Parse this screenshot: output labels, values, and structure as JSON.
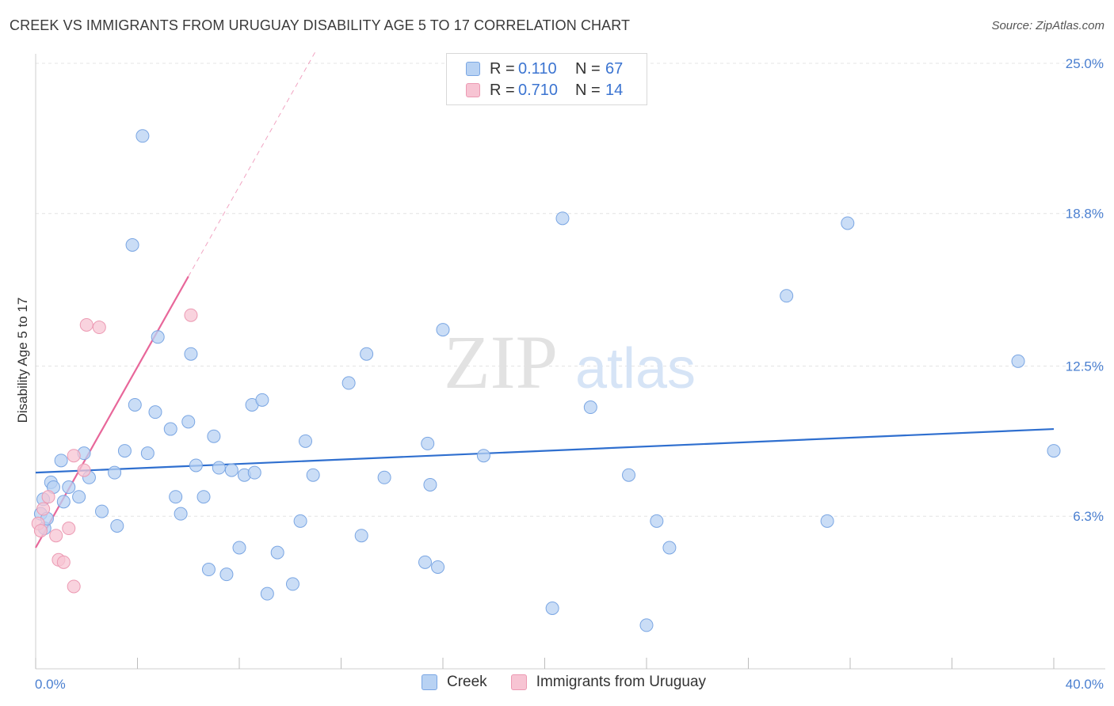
{
  "title": "CREEK VS IMMIGRANTS FROM URUGUAY DISABILITY AGE 5 TO 17 CORRELATION CHART",
  "source": "Source: ZipAtlas.com",
  "watermark": {
    "zip": "ZIP",
    "atlas": "atlas"
  },
  "legend": {
    "rows": [
      {
        "r_label": "R =",
        "r_value": "0.110",
        "n_label": "N =",
        "n_value": "67"
      },
      {
        "r_label": "R =",
        "r_value": "0.710",
        "n_label": "N =",
        "n_value": "14"
      }
    ]
  },
  "bottom_legend": {
    "creek": "Creek",
    "uruguay": "Immigrants from Uruguay"
  },
  "colors": {
    "creek_fill": "#b8d2f3",
    "creek_stroke": "#7aa6e3",
    "creek_line": "#2f6fcf",
    "uruguay_fill": "#f7c4d3",
    "uruguay_stroke": "#ec9ab3",
    "uruguay_line": "#e8679a",
    "grid": "#e4e4e4",
    "axis_text": "#4a7fd0"
  },
  "chart_data": {
    "type": "scatter",
    "title": "CREEK VS IMMIGRANTS FROM URUGUAY DISABILITY AGE 5 TO 17 CORRELATION CHART",
    "xlabel": "",
    "ylabel": "Disability Age 5 to 17",
    "xlim": [
      0,
      40
    ],
    "ylim": [
      0,
      26
    ],
    "x_tick_labels": [
      "0.0%",
      "40.0%"
    ],
    "y_ticks": [
      6.3,
      12.5,
      18.8,
      25.0
    ],
    "y_tick_labels": [
      "6.3%",
      "12.5%",
      "18.8%",
      "25.0%"
    ],
    "series": [
      {
        "name": "Creek",
        "R": 0.11,
        "N": 67,
        "trend": {
          "x": [
            0,
            40
          ],
          "y": [
            8.1,
            9.9
          ]
        },
        "points": [
          [
            0.2,
            6.4
          ],
          [
            0.3,
            7.0
          ],
          [
            0.35,
            5.8
          ],
          [
            0.45,
            6.2
          ],
          [
            0.6,
            7.7
          ],
          [
            0.7,
            7.5
          ],
          [
            1.0,
            8.6
          ],
          [
            1.1,
            6.9
          ],
          [
            1.3,
            7.5
          ],
          [
            1.7,
            7.1
          ],
          [
            1.9,
            8.9
          ],
          [
            2.1,
            7.9
          ],
          [
            2.6,
            6.5
          ],
          [
            3.1,
            8.1
          ],
          [
            3.2,
            5.9
          ],
          [
            3.5,
            9.0
          ],
          [
            3.8,
            17.5
          ],
          [
            3.9,
            10.9
          ],
          [
            4.2,
            22.0
          ],
          [
            4.4,
            8.9
          ],
          [
            4.7,
            10.6
          ],
          [
            4.8,
            13.7
          ],
          [
            5.3,
            9.9
          ],
          [
            5.5,
            7.1
          ],
          [
            5.7,
            6.4
          ],
          [
            6.0,
            10.2
          ],
          [
            6.1,
            13.0
          ],
          [
            6.3,
            8.4
          ],
          [
            6.6,
            7.1
          ],
          [
            6.8,
            4.1
          ],
          [
            7.0,
            9.6
          ],
          [
            7.2,
            8.3
          ],
          [
            7.5,
            3.9
          ],
          [
            7.7,
            8.2
          ],
          [
            8.0,
            5.0
          ],
          [
            8.2,
            8.0
          ],
          [
            8.5,
            10.9
          ],
          [
            8.6,
            8.1
          ],
          [
            8.9,
            11.1
          ],
          [
            9.1,
            3.1
          ],
          [
            9.5,
            4.8
          ],
          [
            10.1,
            3.5
          ],
          [
            10.4,
            6.1
          ],
          [
            10.6,
            9.4
          ],
          [
            10.9,
            8.0
          ],
          [
            12.3,
            11.8
          ],
          [
            12.8,
            5.5
          ],
          [
            13.0,
            13.0
          ],
          [
            13.7,
            7.9
          ],
          [
            15.3,
            4.4
          ],
          [
            15.4,
            9.3
          ],
          [
            15.5,
            7.6
          ],
          [
            15.8,
            4.2
          ],
          [
            16.0,
            14.0
          ],
          [
            17.6,
            8.8
          ],
          [
            20.3,
            2.5
          ],
          [
            20.7,
            18.6
          ],
          [
            21.8,
            10.8
          ],
          [
            23.3,
            8.0
          ],
          [
            24.0,
            1.8
          ],
          [
            24.4,
            6.1
          ],
          [
            24.9,
            5.0
          ],
          [
            29.5,
            15.4
          ],
          [
            31.1,
            6.1
          ],
          [
            31.9,
            18.4
          ],
          [
            38.6,
            12.7
          ],
          [
            40.0,
            9.0
          ]
        ]
      },
      {
        "name": "Immigrants from Uruguay",
        "R": 0.71,
        "N": 14,
        "trend": {
          "x": [
            0,
            6.0
          ],
          "y": [
            5.0,
            16.2
          ],
          "dashed_extension": {
            "x": [
              6.0,
              11.0
            ],
            "y": [
              16.2,
              25.5
            ]
          }
        },
        "points": [
          [
            0.1,
            6.0
          ],
          [
            0.2,
            5.7
          ],
          [
            0.3,
            6.6
          ],
          [
            0.5,
            7.1
          ],
          [
            0.8,
            5.5
          ],
          [
            0.9,
            4.5
          ],
          [
            1.1,
            4.4
          ],
          [
            1.3,
            5.8
          ],
          [
            1.5,
            3.4
          ],
          [
            1.5,
            8.8
          ],
          [
            1.9,
            8.2
          ],
          [
            2.0,
            14.2
          ],
          [
            2.5,
            14.1
          ],
          [
            6.1,
            14.6
          ]
        ]
      }
    ]
  }
}
